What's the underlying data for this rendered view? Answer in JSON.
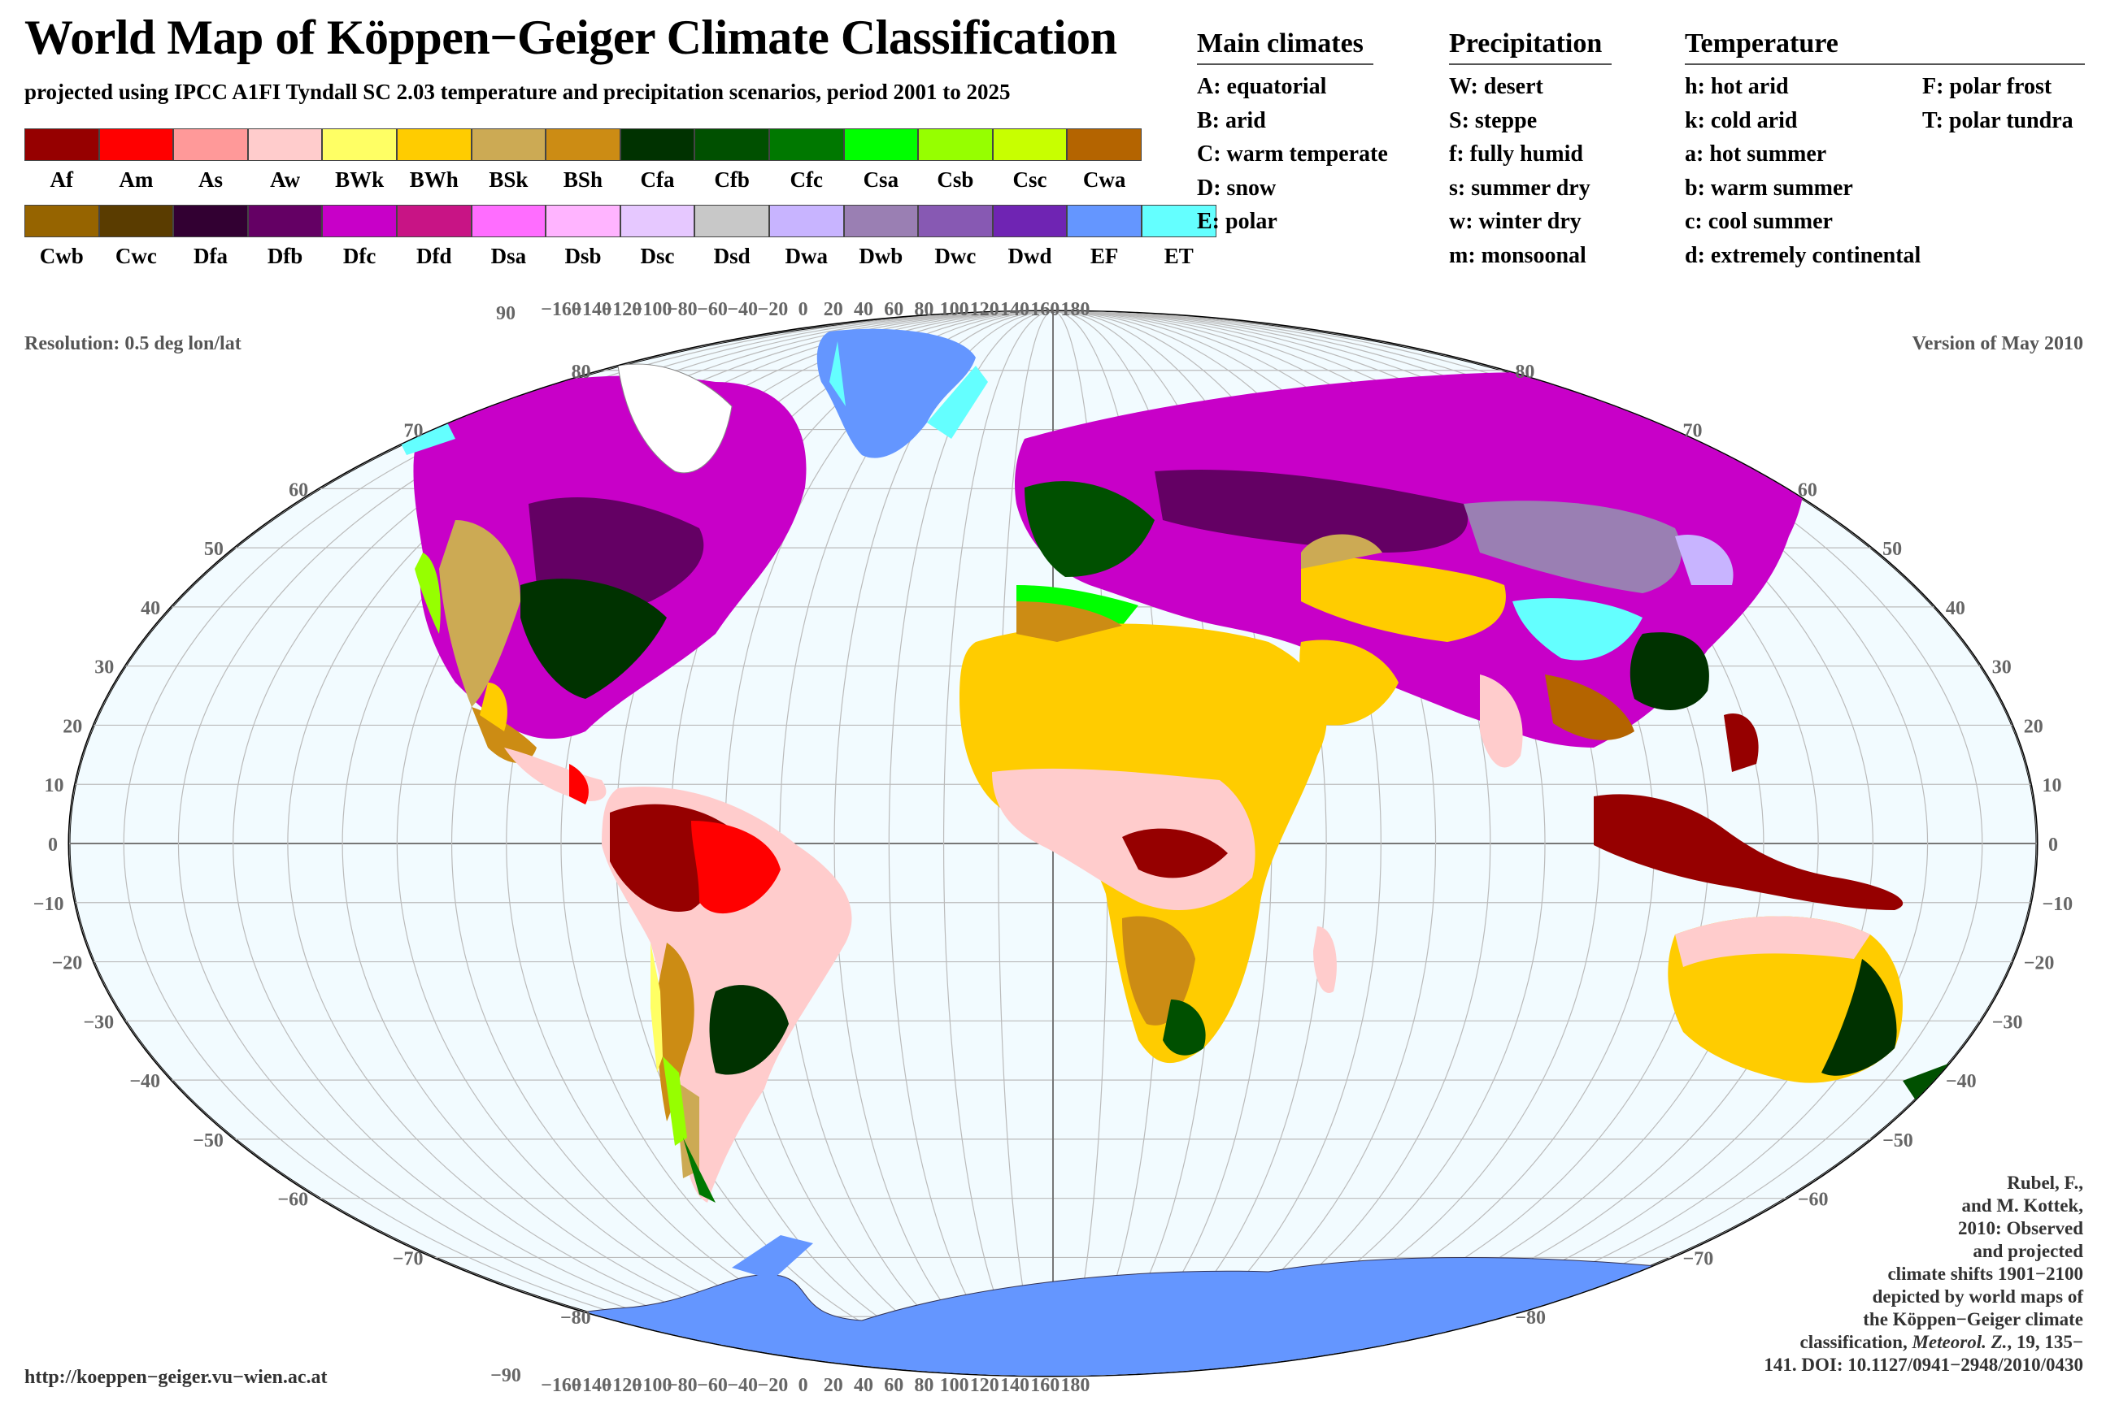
{
  "title": "World Map of Köppen−Geiger Climate Classification",
  "subtitle": "projected using IPCC A1FI Tyndall SC 2.03 temperature and precipitation scenarios, period 2001 to 2025",
  "classes_row1": [
    {
      "code": "Af",
      "color": "#960000"
    },
    {
      "code": "Am",
      "color": "#ff0000"
    },
    {
      "code": "As",
      "color": "#ff9999"
    },
    {
      "code": "Aw",
      "color": "#ffcccc"
    },
    {
      "code": "BWk",
      "color": "#ffff64"
    },
    {
      "code": "BWh",
      "color": "#ffcc00"
    },
    {
      "code": "BSk",
      "color": "#ccaa54"
    },
    {
      "code": "BSh",
      "color": "#cc8c14"
    },
    {
      "code": "Cfa",
      "color": "#003200"
    },
    {
      "code": "Cfb",
      "color": "#005000"
    },
    {
      "code": "Cfc",
      "color": "#007800"
    },
    {
      "code": "Csa",
      "color": "#00ff00"
    },
    {
      "code": "Csb",
      "color": "#96ff00"
    },
    {
      "code": "Csc",
      "color": "#c8ff00"
    },
    {
      "code": "Cwa",
      "color": "#b46400"
    }
  ],
  "classes_row2": [
    {
      "code": "Cwb",
      "color": "#966400"
    },
    {
      "code": "Cwc",
      "color": "#5a3c00"
    },
    {
      "code": "Dfa",
      "color": "#320032"
    },
    {
      "code": "Dfb",
      "color": "#640064"
    },
    {
      "code": "Dfc",
      "color": "#c800c8"
    },
    {
      "code": "Dfd",
      "color": "#c81485"
    },
    {
      "code": "Dsa",
      "color": "#ff6dff"
    },
    {
      "code": "Dsb",
      "color": "#ffb4ff"
    },
    {
      "code": "Dsc",
      "color": "#e6c8ff"
    },
    {
      "code": "Dsd",
      "color": "#c8c8c8"
    },
    {
      "code": "Dwa",
      "color": "#c8b4ff"
    },
    {
      "code": "Dwb",
      "color": "#9a7fb3"
    },
    {
      "code": "Dwc",
      "color": "#8759b3"
    },
    {
      "code": "Dwd",
      "color": "#6f24b3"
    },
    {
      "code": "EF",
      "color": "#6496ff"
    },
    {
      "code": "ET",
      "color": "#64ffff"
    }
  ],
  "legend": {
    "main": {
      "heading": "Main climates",
      "items": [
        "A: equatorial",
        "B: arid",
        "C: warm temperate",
        "D: snow",
        "E: polar"
      ]
    },
    "precip": {
      "heading": "Precipitation",
      "items": [
        "W: desert",
        "S: steppe",
        "f: fully humid",
        "s: summer dry",
        "w: winter dry",
        "m: monsoonal"
      ]
    },
    "temp": {
      "heading": "Temperature",
      "items_left": [
        "h: hot arid",
        "k: cold arid",
        "a: hot summer",
        "b: warm summer",
        "c: cool summer",
        "d: extremely continental"
      ],
      "items_right": [
        "F: polar frost",
        "T: polar tundra"
      ]
    }
  },
  "resolution": "Resolution: 0.5 deg lon/lat",
  "version": "Version of May 2010",
  "url": "http://koeppen−geiger.vu−wien.ac.at",
  "reference": {
    "lines": [
      "Rubel, F.,",
      "and M. Kottek,",
      "2010: Observed",
      "and projected",
      "climate shifts 1901−2100",
      "depicted by world maps of",
      "the Köppen−Geiger climate"
    ],
    "pre": "classification, ",
    "journal": "Meteorol. Z.",
    "post": ", 19, 135−",
    "last": "141. DOI: 10.1127/0941−2948/2010/0430"
  },
  "map": {
    "lon_ticks": [
      "−160",
      "−140",
      "−120",
      "−100",
      "−80",
      "−60",
      "−40",
      "−20",
      "0",
      "20",
      "40",
      "60",
      "80",
      "100",
      "120",
      "140",
      "160",
      "180"
    ],
    "corner_lon_label": "90",
    "corner_lon_label_bottom": "−90",
    "lat_ticks_left": [
      "80",
      "70",
      "60",
      "50",
      "40",
      "30",
      "20",
      "10",
      "0",
      "−10",
      "−20",
      "−30",
      "−40",
      "−50",
      "−60",
      "−70",
      "−80"
    ],
    "lat_ticks_right": [
      "80",
      "70",
      "60",
      "50",
      "40",
      "30",
      "20",
      "10",
      "0",
      "−10",
      "−20",
      "−30",
      "−40",
      "−50",
      "−60",
      "−70",
      "−80"
    ],
    "ocean_color": "#f2fbff"
  }
}
